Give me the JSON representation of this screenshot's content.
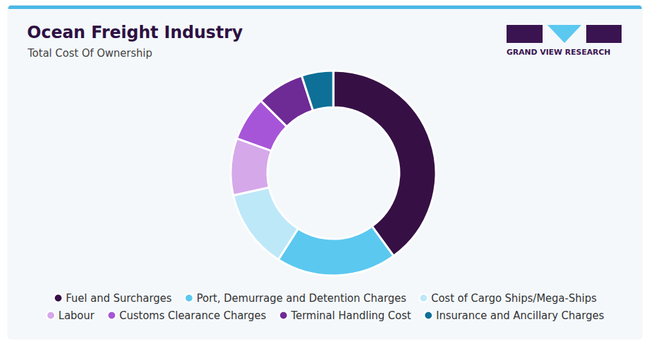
{
  "chart_data": {
    "type": "donut",
    "title": "Ocean Freight Industry",
    "subtitle": "Total Cost Of Ownership",
    "source": "GRAND VIEW RESEARCH",
    "categories": [
      "Fuel and Surcharges",
      "Port, Demurrage and Detention Charges",
      "Cost of Cargo Ships/Mega-Ships",
      "Labour",
      "Customs Clearance Charges",
      "Terminal Handling Cost",
      "Insurance and Ancillary Charges"
    ],
    "values": [
      40,
      19,
      12.5,
      9,
      7,
      7.5,
      5
    ],
    "colors": [
      "#361045",
      "#5bc8f0",
      "#bde8f8",
      "#d5a8ea",
      "#a655d8",
      "#6e2a95",
      "#0e7096"
    ],
    "legend": "bottom",
    "data_labels": false
  }
}
